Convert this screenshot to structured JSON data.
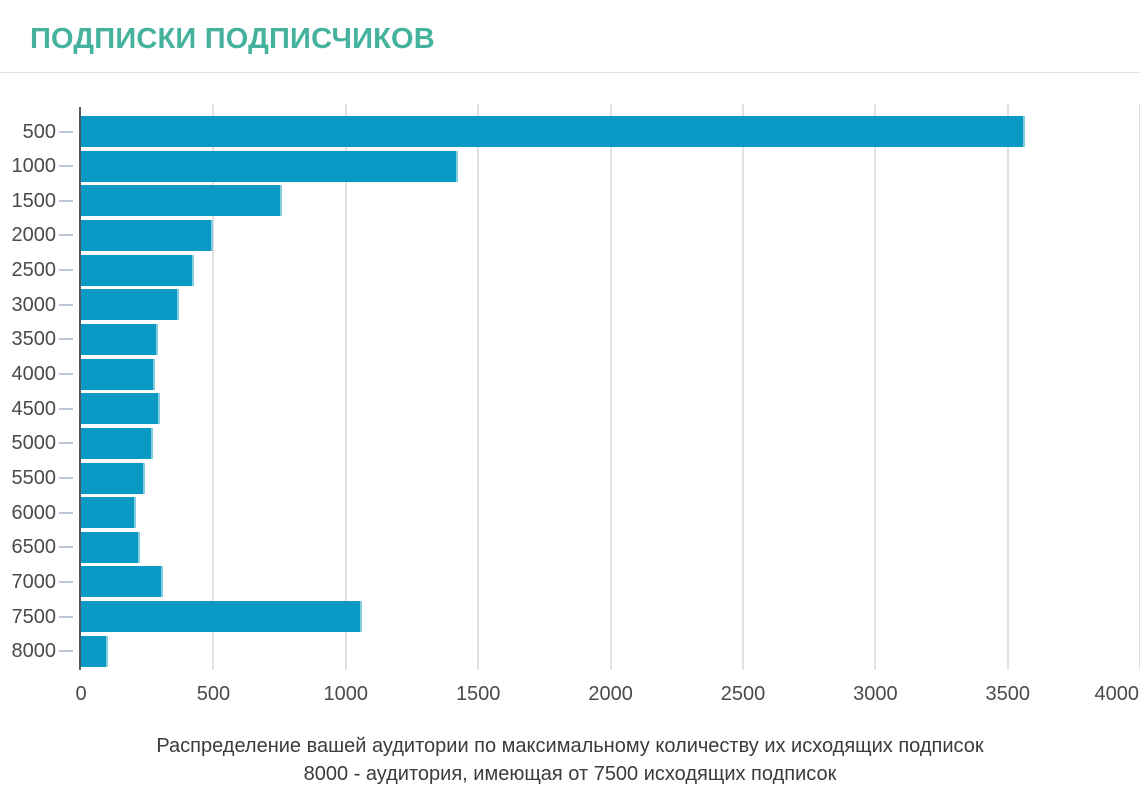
{
  "header": {
    "title": "ПОДПИСКИ ПОДПИСЧИКОВ"
  },
  "colors": {
    "title": "#45b29e",
    "bar": "#0899c4",
    "bar_edge": "#85cce1",
    "gridline": "#e1e1e1",
    "axis": "#505a62",
    "tick": "#bcc8d8",
    "axis_label": "#4a4a4a",
    "caption_text": "#3b3b3b"
  },
  "chart_data": {
    "type": "bar",
    "orientation": "horizontal",
    "title": "ПОДПИСКИ ПОДПИСЧИКОВ",
    "categories": [
      "500",
      "1000",
      "1500",
      "2000",
      "2500",
      "3000",
      "3500",
      "4000",
      "4500",
      "5000",
      "5500",
      "6000",
      "6500",
      "7000",
      "7500",
      "8000"
    ],
    "values": [
      3565,
      1423,
      760,
      500,
      428,
      369,
      290,
      278,
      297,
      271,
      242,
      206,
      224,
      308,
      1061,
      103
    ],
    "xlabel": "",
    "ylabel": "",
    "xlim": [
      0,
      4000
    ],
    "x_ticks": [
      0,
      500,
      1000,
      1500,
      2000,
      2500,
      3000,
      3500,
      4000
    ],
    "x_tick_labels": [
      "0",
      "500",
      "1000",
      "1500",
      "2000",
      "2500",
      "3000",
      "3500",
      "4000"
    ],
    "grid": "vertical",
    "legend": "none",
    "caption_line1": "Распределение вашей аудитории по максимальному количеству их исходящих подписок",
    "caption_line2": "8000 - аудитория, имеющая от 7500 исходящих подписок"
  }
}
